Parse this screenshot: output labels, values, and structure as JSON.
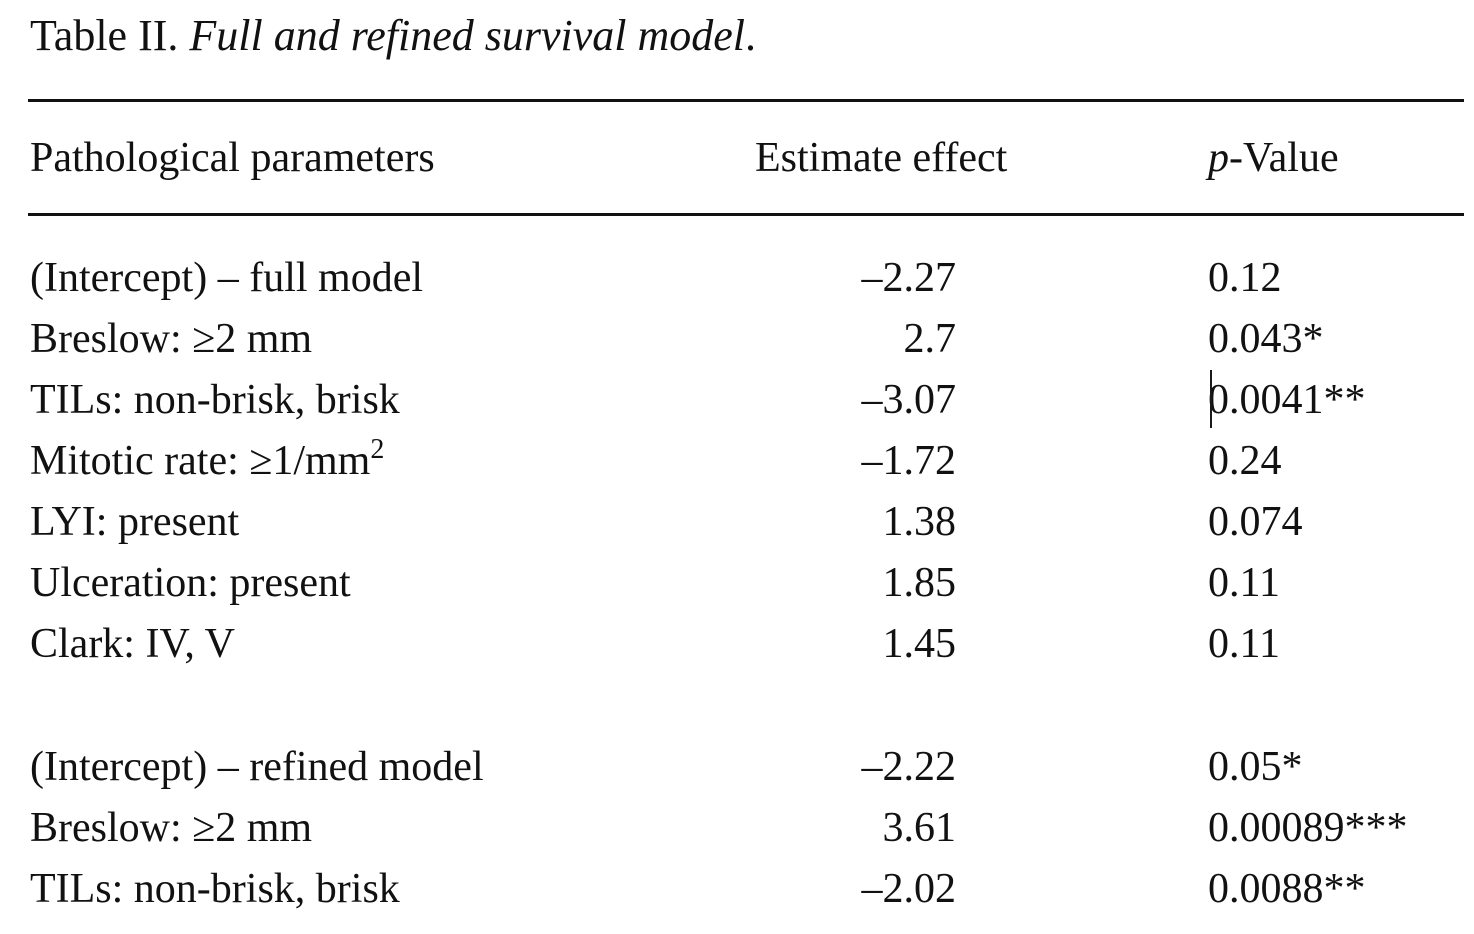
{
  "caption": {
    "label": "Table II.",
    "title": "Full and refined survival model",
    "end": "."
  },
  "table": {
    "headers": {
      "parameter": "Pathological parameters",
      "estimate": "Estimate effect",
      "p_prefix": "p",
      "p_suffix": "-Value"
    },
    "full_model": [
      {
        "parameter": "(Intercept) – full model",
        "estimate": "–2.27",
        "p_value": "0.12"
      },
      {
        "parameter": "Breslow: ≥2 mm",
        "estimate": "2.7",
        "p_value": "0.043*"
      },
      {
        "parameter": "TILs: non-brisk, brisk",
        "estimate": "–3.07",
        "p_value": "0.0041**"
      },
      {
        "parameter": "Mitotic rate: ≥1/mm",
        "parameter_sup": "2",
        "estimate": "–1.72",
        "p_value": "0.24"
      },
      {
        "parameter": "LYI: present",
        "estimate": "1.38",
        "p_value": "0.074"
      },
      {
        "parameter": "Ulceration: present",
        "estimate": "1.85",
        "p_value": "0.11"
      },
      {
        "parameter": "Clark: IV, V",
        "estimate": "1.45",
        "p_value": "0.11"
      }
    ],
    "refined_model": [
      {
        "parameter": "(Intercept) – refined model",
        "estimate": "–2.22",
        "p_value": "0.05*"
      },
      {
        "parameter": "Breslow: ≥2 mm",
        "estimate": "3.61",
        "p_value": "0.00089***"
      },
      {
        "parameter": "TILs: non-brisk, brisk",
        "estimate": "–2.02",
        "p_value": "0.0088**"
      }
    ]
  }
}
